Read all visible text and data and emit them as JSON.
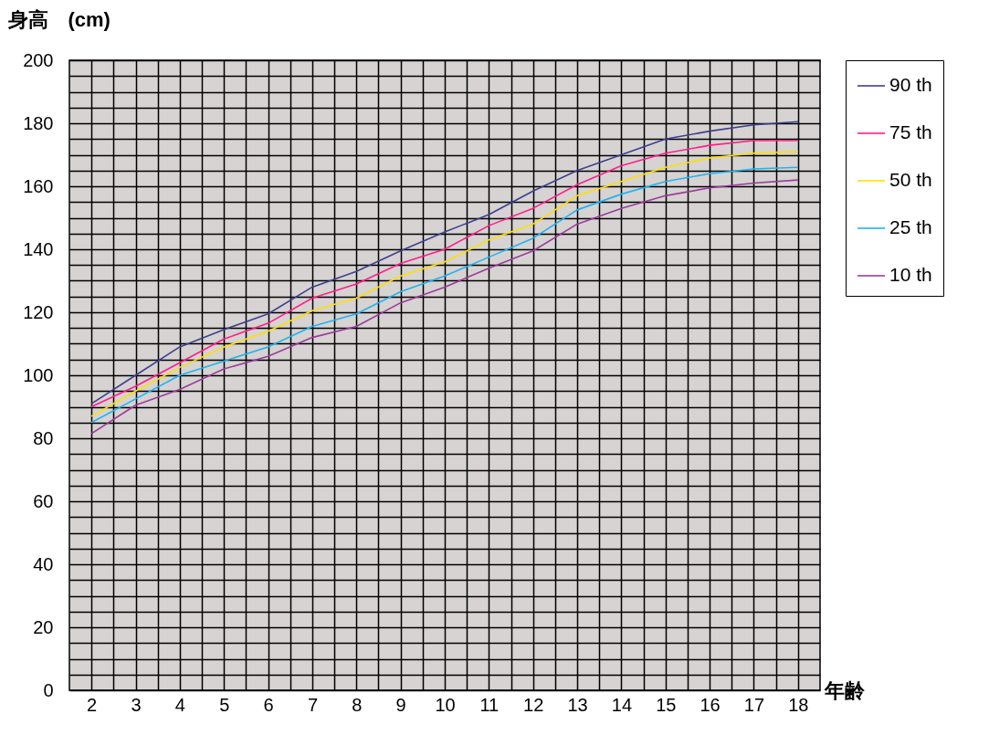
{
  "chart_data": {
    "type": "line",
    "xlabel": "年齢",
    "ylabel": "身高　(cm)",
    "x": [
      2,
      3,
      4,
      5,
      6,
      7,
      8,
      9,
      10,
      11,
      12,
      13,
      14,
      15,
      16,
      17,
      18
    ],
    "xlim": [
      1.5,
      18.5
    ],
    "xticks": [
      2,
      3,
      4,
      5,
      6,
      7,
      8,
      9,
      10,
      11,
      12,
      13,
      14,
      15,
      16,
      17,
      18
    ],
    "ylim": [
      0,
      200
    ],
    "yticks": [
      0,
      20,
      40,
      60,
      80,
      100,
      120,
      140,
      160,
      180,
      200
    ],
    "grid": true,
    "legend": "right",
    "marker": "none",
    "line_style": "solid",
    "series": [
      {
        "name": "90 th",
        "color": "#3f3f8f",
        "values": [
          91,
          100,
          109,
          114.5,
          119.5,
          128,
          133,
          139.5,
          145.5,
          151,
          158.5,
          165,
          170,
          175,
          177.5,
          179.5,
          180.5
        ]
      },
      {
        "name": "75 th",
        "color": "#ff1e8c",
        "values": [
          90,
          96.5,
          104,
          111.5,
          116.5,
          124.5,
          129,
          135.5,
          140,
          147.5,
          153,
          160.5,
          166.5,
          170.5,
          173,
          174.5,
          174.5
        ]
      },
      {
        "name": "50 th",
        "color": "#ffe000",
        "values": [
          87,
          95,
          102.5,
          109,
          114,
          120.5,
          124.5,
          131.5,
          136,
          143,
          148,
          157,
          161.5,
          166,
          169,
          170.5,
          171
        ]
      },
      {
        "name": "25 th",
        "color": "#1eb4f0",
        "values": [
          85,
          92.5,
          100,
          104.5,
          109,
          115.5,
          119.5,
          126.5,
          131.5,
          137.5,
          143.5,
          152.5,
          157.5,
          161.5,
          164,
          165.5,
          166
        ]
      },
      {
        "name": "10 th",
        "color": "#9b3c9b",
        "values": [
          81.5,
          90.5,
          95.5,
          102,
          106,
          112,
          115.5,
          123,
          128,
          134,
          139.5,
          148,
          153,
          157,
          159.5,
          161,
          162
        ]
      }
    ]
  }
}
